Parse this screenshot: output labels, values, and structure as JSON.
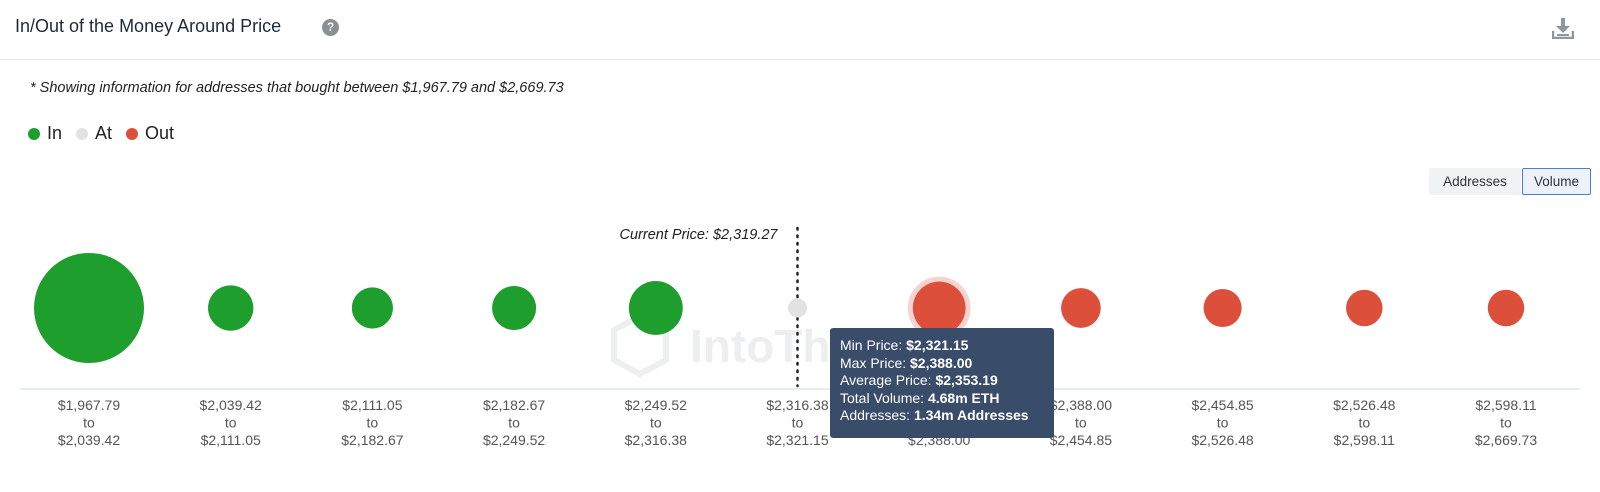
{
  "header": {
    "title": "In/Out of the Money Around Price",
    "help_icon": "?"
  },
  "note": "* Showing information for addresses that bought between $1,967.79 and $2,669.73",
  "legend": [
    {
      "label": "In",
      "color": "#1e9e2c"
    },
    {
      "label": "At",
      "color": "#e2e2e2"
    },
    {
      "label": "Out",
      "color": "#dc4f3b"
    }
  ],
  "toggles": {
    "addresses": "Addresses",
    "volume": "Volume",
    "active": "Volume"
  },
  "watermark": "IntoThe",
  "chart_data": {
    "type": "scatter",
    "current_price_label": "Current Price: $2,319.27",
    "current_price_after_bucket": 5,
    "categories": [
      [
        "$1,967.79",
        "to",
        "$2,039.42"
      ],
      [
        "$2,039.42",
        "to",
        "$2,111.05"
      ],
      [
        "$2,111.05",
        "to",
        "$2,182.67"
      ],
      [
        "$2,182.67",
        "to",
        "$2,249.52"
      ],
      [
        "$2,249.52",
        "to",
        "$2,316.38"
      ],
      [
        "$2,316.38",
        "to",
        "$2,321.15"
      ],
      [
        "$2,321.15",
        "to",
        "$2,388.00"
      ],
      [
        "$2,388.00",
        "to",
        "$2,454.85"
      ],
      [
        "$2,454.85",
        "to",
        "$2,526.48"
      ],
      [
        "$2,526.48",
        "to",
        "$2,598.11"
      ],
      [
        "$2,598.11",
        "to",
        "$2,669.73"
      ]
    ],
    "status": [
      "In",
      "In",
      "In",
      "In",
      "In",
      "At",
      "Out",
      "Out",
      "Out",
      "Out",
      "Out"
    ],
    "relative_volume": [
      1.0,
      0.17,
      0.14,
      0.16,
      0.24,
      0.03,
      0.23,
      0.13,
      0.12,
      0.11,
      0.11
    ],
    "highlighted_index": 6
  },
  "tooltip": {
    "min_label": "Min Price:",
    "min_value": "$2,321.15",
    "max_label": "Max Price:",
    "max_value": "$2,388.00",
    "avg_label": "Average Price:",
    "avg_value": "$2,353.19",
    "vol_label": "Total Volume:",
    "vol_value": "4.68m ETH",
    "addr_label": "Addresses:",
    "addr_value": "1.34m Addresses"
  }
}
